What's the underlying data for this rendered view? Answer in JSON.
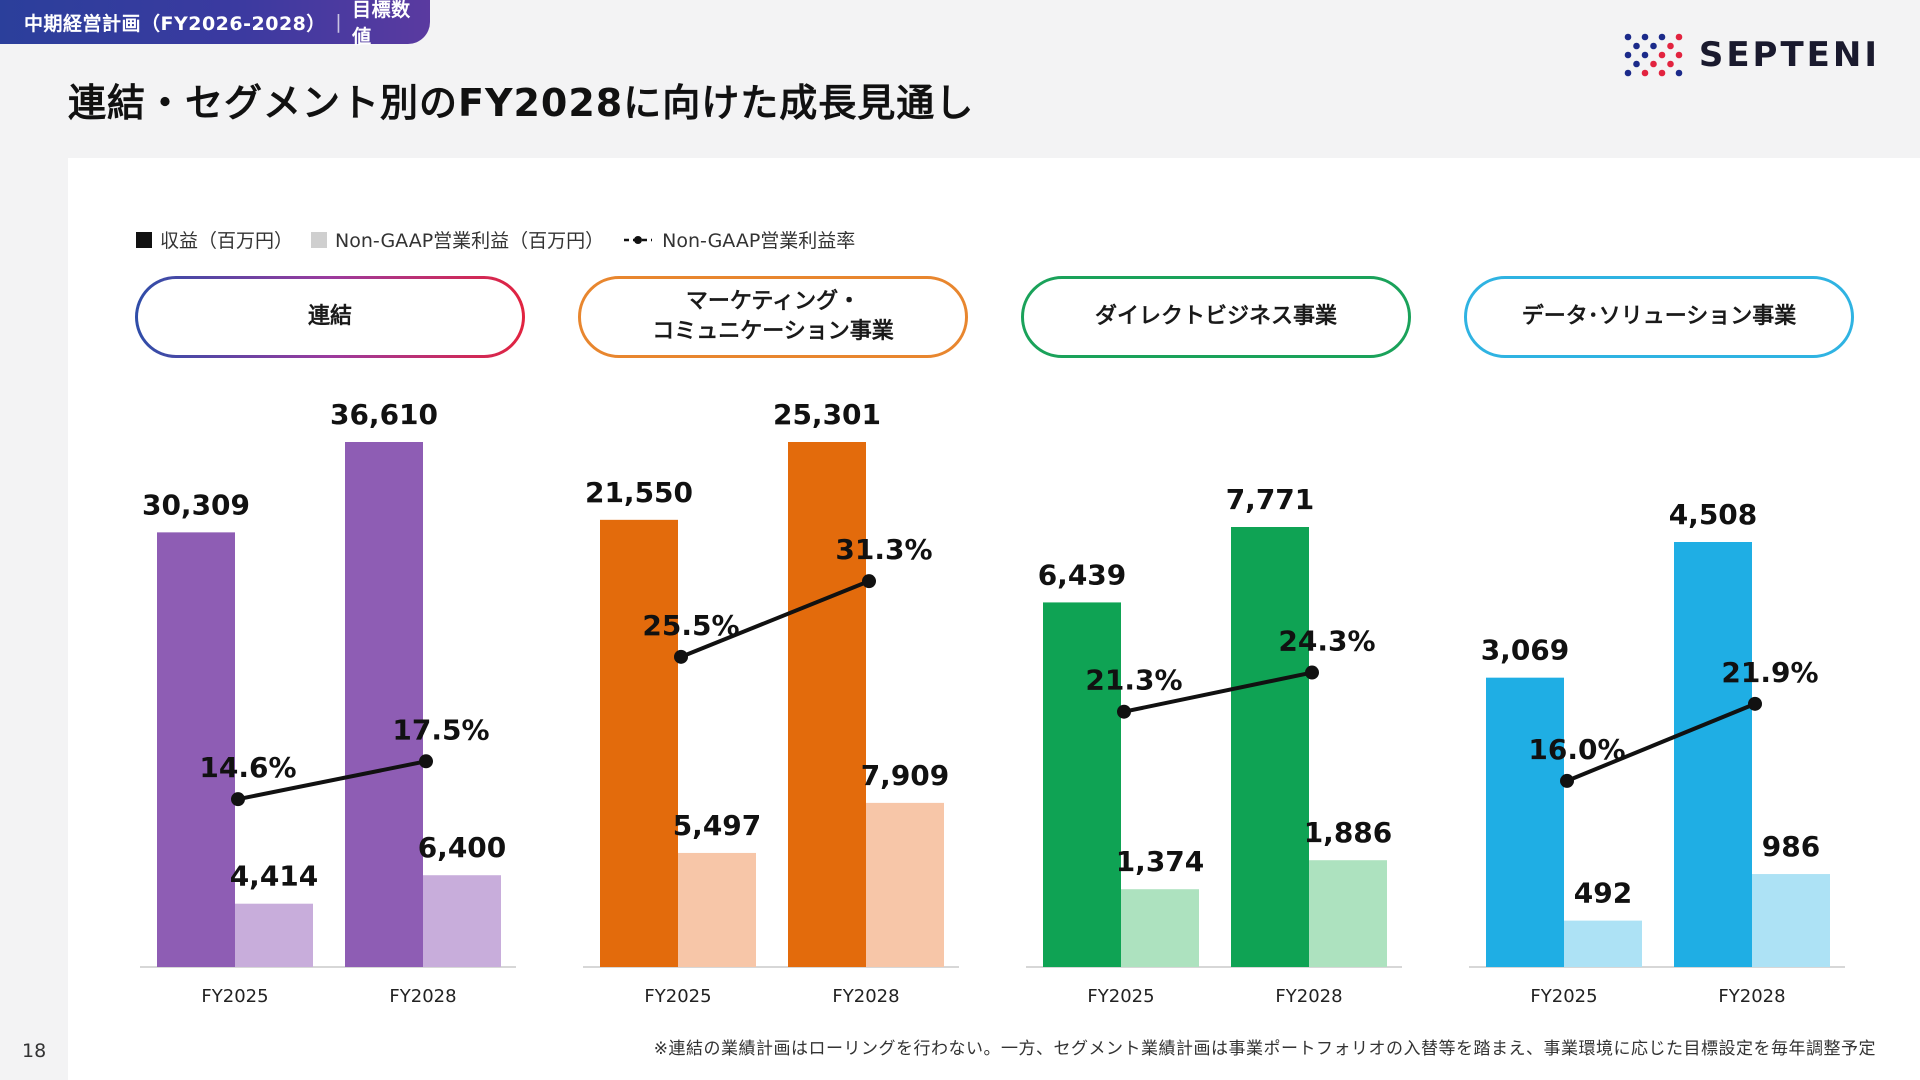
{
  "header": {
    "tag_main": "中期経営計画（FY2026-2028）",
    "tag_sub": "目標数値",
    "title": "連結・セグメント別のFY2028に向けた成長見通し",
    "logo_text": "SEPTENI"
  },
  "page_number": "18",
  "legend": {
    "revenue": "収益（百万円）",
    "op_income": "Non-GAAP営業利益（百万円）",
    "margin": "Non-GAAP営業利益率"
  },
  "footnote": "※連結の業績計画はローリングを行わない。一方、セグメント業績計画は事業ポートフォリオの入替等を踏まえ、事業環境に応じた目標設定を毎年調整予定",
  "chart_data": {
    "type": "bar",
    "categories": [
      "FY2025",
      "FY2028"
    ],
    "panels": [
      {
        "title": "連結",
        "colors": {
          "revenue": "#8e5db4",
          "op_income": "#c8addb",
          "border": "gradient-blue-purple-red"
        },
        "revenue": [
          30309,
          36610
        ],
        "revenue_labels": [
          "30,309",
          "36,610"
        ],
        "op_income": [
          4414,
          6400
        ],
        "op_income_labels": [
          "4,414",
          "6,400"
        ],
        "margin": [
          14.6,
          17.5
        ],
        "margin_labels": [
          "14.6%",
          "17.5%"
        ]
      },
      {
        "title": "マーケティング・\nコミュニケーション事業",
        "colors": {
          "revenue": "#e36b0c",
          "op_income": "#f7c6a8",
          "border": "#e8862e"
        },
        "revenue": [
          21550,
          25301
        ],
        "revenue_labels": [
          "21,550",
          "25,301"
        ],
        "op_income": [
          5497,
          7909
        ],
        "op_income_labels": [
          "5,497",
          "7,909"
        ],
        "margin": [
          25.5,
          31.3
        ],
        "margin_labels": [
          "25.5%",
          "31.3%"
        ]
      },
      {
        "title": "ダイレクトビジネス事業",
        "colors": {
          "revenue": "#0fa354",
          "op_income": "#ade2bf",
          "border": "#1aa25a"
        },
        "revenue": [
          6439,
          7771
        ],
        "revenue_labels": [
          "6,439",
          "7,771"
        ],
        "op_income": [
          1374,
          1886
        ],
        "op_income_labels": [
          "1,374",
          "1,886"
        ],
        "margin": [
          21.3,
          24.3
        ],
        "margin_labels": [
          "21.3%",
          "24.3%"
        ]
      },
      {
        "title": "データ･ソリューション事業",
        "colors": {
          "revenue": "#1faee4",
          "op_income": "#ade2f5",
          "border": "#2fb3e2"
        },
        "revenue": [
          3069,
          4508
        ],
        "revenue_labels": [
          "3,069",
          "4,508"
        ],
        "op_income": [
          492,
          986
        ],
        "op_income_labels": [
          "492",
          "986"
        ],
        "margin": [
          16.0,
          21.9
        ],
        "margin_labels": [
          "16.0%",
          "21.9%"
        ]
      }
    ]
  }
}
